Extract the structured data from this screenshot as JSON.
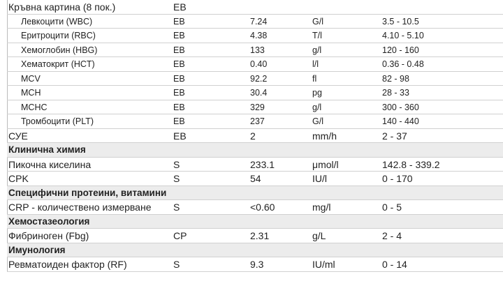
{
  "table": {
    "blood_panel": {
      "label": "Кръвна картина (8 пок.)",
      "method": "ЕВ",
      "items": [
        [
          "Левкоцити (WBC)",
          "ЕВ",
          "7.24",
          "G/l",
          "3.5 - 10.5"
        ],
        [
          "Еритроцити (RBC)",
          "ЕВ",
          "4.38",
          "T/l",
          "4.10 - 5.10"
        ],
        [
          "Хемоглобин (HBG)",
          "ЕВ",
          "133",
          "g/l",
          "120 - 160"
        ],
        [
          "Хематокрит (HCT)",
          "ЕВ",
          "0.40",
          "l/l",
          "0.36 - 0.48"
        ],
        [
          "MCV",
          "ЕВ",
          "92.2",
          "fl",
          "82 - 98"
        ],
        [
          "MCH",
          "ЕВ",
          "30.4",
          "pg",
          "28 - 33"
        ],
        [
          "MCHC",
          "ЕВ",
          "329",
          "g/l",
          "300 - 360"
        ],
        [
          "Тромбоцити (PLT)",
          "ЕВ",
          "237",
          "G/l",
          "140 - 440"
        ]
      ]
    },
    "esr": [
      "СУЕ",
      "ЕВ",
      "2",
      "mm/h",
      "2 - 37"
    ],
    "sections": [
      {
        "title": "Клинична химия",
        "rows": [
          [
            "Пикочна киселина",
            "S",
            "233.1",
            "μmol/l",
            "142.8 - 339.2"
          ],
          [
            "CPK",
            "S",
            "54",
            "IU/l",
            "0 - 170"
          ]
        ]
      },
      {
        "title": "Специфични протеини, витамини",
        "rows": [
          [
            "CRP - количествено измерване",
            "S",
            "<0.60",
            "mg/l",
            "0 - 5"
          ]
        ]
      },
      {
        "title": "Хемостазеология",
        "rows": [
          [
            "Фибриноген (Fbg)",
            "CP",
            "2.31",
            "g/L",
            "2 - 4"
          ]
        ]
      },
      {
        "title": "Имунология",
        "rows": [
          [
            "Ревматоиден фактор (RF)",
            "S",
            "9.3",
            "IU/ml",
            "0 - 14"
          ]
        ]
      }
    ]
  }
}
